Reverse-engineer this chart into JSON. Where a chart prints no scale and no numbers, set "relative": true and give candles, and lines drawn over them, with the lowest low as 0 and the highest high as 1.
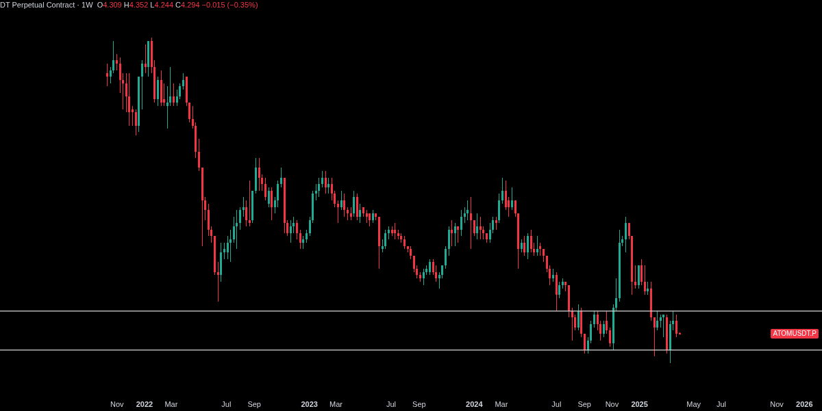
{
  "chart_data": {
    "type": "candlestick",
    "title": "DT Perpetual Contract · 1W",
    "subtitle": "O4.309 H4.352 L4.244 C4.294 −0.015 (−0.35%)",
    "relative": true,
    "annotations": [
      "ATOMUSDT.P"
    ],
    "x": [
      "2021-10-11",
      "2021-10-18",
      "2021-10-25",
      "2021-11-01",
      "2021-11-08",
      "2021-11-15",
      "2021-11-22",
      "2021-11-29",
      "2021-12-06",
      "2021-12-13",
      "2021-12-20",
      "2021-12-27",
      "2022-01-03",
      "2022-01-10",
      "2022-01-17",
      "2022-01-24",
      "2022-01-31",
      "2022-02-07",
      "2022-02-14",
      "2022-02-21",
      "2022-02-28",
      "2022-03-07",
      "2022-03-14",
      "2022-03-21",
      "2022-03-28",
      "2022-04-04",
      "2022-04-11",
      "2022-04-18",
      "2022-04-25",
      "2022-05-02",
      "2022-05-09",
      "2022-05-16",
      "2022-05-23",
      "2022-05-30",
      "2022-06-06",
      "2022-06-13",
      "2022-06-20",
      "2022-06-27",
      "2022-07-04",
      "2022-07-11",
      "2022-07-18",
      "2022-07-25",
      "2022-08-01",
      "2022-08-08",
      "2022-08-15",
      "2022-08-22",
      "2022-08-29",
      "2022-09-05",
      "2022-09-12",
      "2022-09-19",
      "2022-09-26",
      "2022-10-03",
      "2022-10-10",
      "2022-10-17",
      "2022-10-24",
      "2022-10-31",
      "2022-11-07",
      "2022-11-14",
      "2022-11-21",
      "2022-11-28",
      "2022-12-05",
      "2022-12-12",
      "2022-12-19",
      "2022-12-26",
      "2023-01-02",
      "2023-01-09",
      "2023-01-16",
      "2023-01-23",
      "2023-01-30",
      "2023-02-06",
      "2023-02-13",
      "2023-02-20",
      "2023-02-27",
      "2023-03-06",
      "2023-03-13",
      "2023-03-20",
      "2023-03-27",
      "2023-04-03",
      "2023-04-10",
      "2023-04-17",
      "2023-04-24",
      "2023-05-01",
      "2023-05-08",
      "2023-05-15",
      "2023-05-22",
      "2023-05-29",
      "2023-06-05",
      "2023-06-12",
      "2023-06-19",
      "2023-06-26",
      "2023-07-03",
      "2023-07-10",
      "2023-07-17",
      "2023-07-24",
      "2023-07-31",
      "2023-08-07",
      "2023-08-14",
      "2023-08-21",
      "2023-08-28",
      "2023-09-04",
      "2023-09-11",
      "2023-09-18",
      "2023-09-25",
      "2023-10-02",
      "2023-10-09",
      "2023-10-16",
      "2023-10-23",
      "2023-10-30",
      "2023-11-06",
      "2023-11-13",
      "2023-11-20",
      "2023-11-27",
      "2023-12-04",
      "2023-12-11",
      "2023-12-18",
      "2023-12-25",
      "2024-01-01",
      "2024-01-08",
      "2024-01-15",
      "2024-01-22",
      "2024-01-29",
      "2024-02-05",
      "2024-02-12",
      "2024-02-19",
      "2024-02-26",
      "2024-03-04",
      "2024-03-11",
      "2024-03-18",
      "2024-03-25",
      "2024-04-01",
      "2024-04-08",
      "2024-04-15",
      "2024-04-22",
      "2024-04-29",
      "2024-05-06",
      "2024-05-13",
      "2024-05-20",
      "2024-05-27",
      "2024-06-03",
      "2024-06-10",
      "2024-06-17",
      "2024-06-24",
      "2024-07-01",
      "2024-07-08",
      "2024-07-15",
      "2024-07-22",
      "2024-07-29",
      "2024-08-05",
      "2024-08-12",
      "2024-08-19",
      "2024-08-26",
      "2024-09-02",
      "2024-09-09",
      "2024-09-16",
      "2024-09-23",
      "2024-09-30",
      "2024-10-07",
      "2024-10-14",
      "2024-10-21",
      "2024-10-28",
      "2024-11-04",
      "2024-11-11",
      "2024-11-18",
      "2024-11-25",
      "2024-12-02",
      "2024-12-09",
      "2024-12-16",
      "2024-12-23",
      "2024-12-30",
      "2025-01-06",
      "2025-01-13",
      "2025-01-20",
      "2025-01-27",
      "2025-02-03",
      "2025-02-10",
      "2025-02-17",
      "2025-02-24",
      "2025-03-03",
      "2025-03-10",
      "2025-03-17",
      "2025-03-24",
      "2025-03-31"
    ],
    "ohlc": [
      [
        0.89,
        0.92,
        0.85,
        0.88
      ],
      [
        0.88,
        0.91,
        0.86,
        0.9
      ],
      [
        0.9,
        0.99,
        0.89,
        0.93
      ],
      [
        0.93,
        0.95,
        0.9,
        0.92
      ],
      [
        0.92,
        0.94,
        0.83,
        0.87
      ],
      [
        0.87,
        0.89,
        0.78,
        0.86
      ],
      [
        0.86,
        0.89,
        0.77,
        0.82
      ],
      [
        0.82,
        0.89,
        0.73,
        0.77
      ],
      [
        0.78,
        0.79,
        0.73,
        0.77
      ],
      [
        0.77,
        0.78,
        0.7,
        0.73
      ],
      [
        0.73,
        0.88,
        0.71,
        0.88
      ],
      [
        0.88,
        0.93,
        0.78,
        0.92
      ],
      [
        0.92,
        0.98,
        0.89,
        0.91
      ],
      [
        0.91,
        0.99,
        0.88,
        0.99
      ],
      [
        0.99,
        1.0,
        0.89,
        0.91
      ],
      [
        0.91,
        0.93,
        0.8,
        0.81
      ],
      [
        0.81,
        0.88,
        0.79,
        0.87
      ],
      [
        0.87,
        0.9,
        0.79,
        0.8
      ],
      [
        0.81,
        0.86,
        0.79,
        0.8
      ],
      [
        0.79,
        0.85,
        0.72,
        0.8
      ],
      [
        0.8,
        0.91,
        0.79,
        0.82
      ],
      [
        0.82,
        0.86,
        0.79,
        0.8
      ],
      [
        0.8,
        0.84,
        0.79,
        0.82
      ],
      [
        0.82,
        0.86,
        0.81,
        0.85
      ],
      [
        0.85,
        0.89,
        0.84,
        0.87
      ],
      [
        0.88,
        0.88,
        0.79,
        0.8
      ],
      [
        0.8,
        0.8,
        0.74,
        0.75
      ],
      [
        0.75,
        0.79,
        0.72,
        0.73
      ],
      [
        0.73,
        0.74,
        0.63,
        0.65
      ],
      [
        0.65,
        0.69,
        0.59,
        0.6
      ],
      [
        0.6,
        0.6,
        0.36,
        0.5
      ],
      [
        0.5,
        0.51,
        0.44,
        0.47
      ],
      [
        0.47,
        0.49,
        0.39,
        0.41
      ],
      [
        0.41,
        0.42,
        0.37,
        0.39
      ],
      [
        0.39,
        0.39,
        0.27,
        0.28
      ],
      [
        0.28,
        0.31,
        0.19,
        0.27
      ],
      [
        0.27,
        0.37,
        0.25,
        0.34
      ],
      [
        0.34,
        0.37,
        0.32,
        0.35
      ],
      [
        0.34,
        0.39,
        0.32,
        0.37
      ],
      [
        0.37,
        0.41,
        0.31,
        0.38
      ],
      [
        0.38,
        0.45,
        0.37,
        0.42
      ],
      [
        0.42,
        0.47,
        0.35,
        0.43
      ],
      [
        0.43,
        0.48,
        0.41,
        0.47
      ],
      [
        0.47,
        0.51,
        0.45,
        0.48
      ],
      [
        0.48,
        0.5,
        0.42,
        0.44
      ],
      [
        0.44,
        0.56,
        0.42,
        0.43
      ],
      [
        0.44,
        0.53,
        0.43,
        0.53
      ],
      [
        0.53,
        0.63,
        0.52,
        0.6
      ],
      [
        0.6,
        0.63,
        0.53,
        0.57
      ],
      [
        0.57,
        0.58,
        0.53,
        0.55
      ],
      [
        0.55,
        0.57,
        0.5,
        0.51
      ],
      [
        0.49,
        0.54,
        0.48,
        0.53
      ],
      [
        0.53,
        0.54,
        0.44,
        0.48
      ],
      [
        0.48,
        0.51,
        0.46,
        0.5
      ],
      [
        0.5,
        0.56,
        0.48,
        0.55
      ],
      [
        0.55,
        0.6,
        0.54,
        0.57
      ],
      [
        0.57,
        0.57,
        0.4,
        0.43
      ],
      [
        0.43,
        0.44,
        0.39,
        0.4
      ],
      [
        0.4,
        0.44,
        0.37,
        0.42
      ],
      [
        0.42,
        0.45,
        0.4,
        0.43
      ],
      [
        0.43,
        0.44,
        0.38,
        0.4
      ],
      [
        0.4,
        0.41,
        0.35,
        0.37
      ],
      [
        0.37,
        0.39,
        0.35,
        0.38
      ],
      [
        0.38,
        0.41,
        0.37,
        0.4
      ],
      [
        0.4,
        0.45,
        0.39,
        0.44
      ],
      [
        0.44,
        0.53,
        0.43,
        0.52
      ],
      [
        0.52,
        0.55,
        0.5,
        0.53
      ],
      [
        0.53,
        0.57,
        0.51,
        0.55
      ],
      [
        0.55,
        0.59,
        0.54,
        0.57
      ],
      [
        0.57,
        0.59,
        0.52,
        0.54
      ],
      [
        0.54,
        0.57,
        0.52,
        0.55
      ],
      [
        0.55,
        0.57,
        0.5,
        0.52
      ],
      [
        0.52,
        0.53,
        0.48,
        0.49
      ],
      [
        0.49,
        0.5,
        0.43,
        0.48
      ],
      [
        0.48,
        0.53,
        0.47,
        0.5
      ],
      [
        0.5,
        0.52,
        0.45,
        0.47
      ],
      [
        0.47,
        0.48,
        0.44,
        0.46
      ],
      [
        0.46,
        0.48,
        0.44,
        0.45
      ],
      [
        0.46,
        0.53,
        0.45,
        0.51
      ],
      [
        0.51,
        0.52,
        0.44,
        0.45
      ],
      [
        0.45,
        0.49,
        0.43,
        0.47
      ],
      [
        0.48,
        0.48,
        0.45,
        0.46
      ],
      [
        0.46,
        0.47,
        0.43,
        0.45
      ],
      [
        0.46,
        0.46,
        0.42,
        0.44
      ],
      [
        0.44,
        0.47,
        0.43,
        0.46
      ],
      [
        0.46,
        0.46,
        0.44,
        0.45
      ],
      [
        0.45,
        0.45,
        0.29,
        0.36
      ],
      [
        0.35,
        0.38,
        0.34,
        0.36
      ],
      [
        0.36,
        0.41,
        0.35,
        0.4
      ],
      [
        0.4,
        0.42,
        0.38,
        0.41
      ],
      [
        0.41,
        0.42,
        0.39,
        0.4
      ],
      [
        0.41,
        0.43,
        0.38,
        0.4
      ],
      [
        0.4,
        0.41,
        0.38,
        0.39
      ],
      [
        0.39,
        0.4,
        0.37,
        0.38
      ],
      [
        0.38,
        0.39,
        0.35,
        0.36
      ],
      [
        0.36,
        0.36,
        0.34,
        0.35
      ],
      [
        0.35,
        0.36,
        0.32,
        0.33
      ],
      [
        0.33,
        0.33,
        0.28,
        0.29
      ],
      [
        0.29,
        0.3,
        0.26,
        0.27
      ],
      [
        0.27,
        0.28,
        0.25,
        0.26
      ],
      [
        0.26,
        0.29,
        0.24,
        0.28
      ],
      [
        0.28,
        0.3,
        0.27,
        0.29
      ],
      [
        0.28,
        0.32,
        0.27,
        0.31
      ],
      [
        0.31,
        0.32,
        0.27,
        0.28
      ],
      [
        0.28,
        0.3,
        0.25,
        0.26
      ],
      [
        0.26,
        0.28,
        0.23,
        0.27
      ],
      [
        0.27,
        0.3,
        0.26,
        0.3
      ],
      [
        0.3,
        0.36,
        0.29,
        0.35
      ],
      [
        0.35,
        0.42,
        0.33,
        0.41
      ],
      [
        0.41,
        0.44,
        0.36,
        0.4
      ],
      [
        0.4,
        0.43,
        0.36,
        0.42
      ],
      [
        0.42,
        0.42,
        0.37,
        0.41
      ],
      [
        0.41,
        0.47,
        0.39,
        0.45
      ],
      [
        0.45,
        0.48,
        0.43,
        0.46
      ],
      [
        0.46,
        0.5,
        0.44,
        0.47
      ],
      [
        0.46,
        0.51,
        0.35,
        0.44
      ],
      [
        0.44,
        0.44,
        0.39,
        0.4
      ],
      [
        0.4,
        0.46,
        0.38,
        0.42
      ],
      [
        0.42,
        0.45,
        0.38,
        0.41
      ],
      [
        0.41,
        0.42,
        0.38,
        0.4
      ],
      [
        0.4,
        0.4,
        0.37,
        0.38
      ],
      [
        0.38,
        0.43,
        0.37,
        0.41
      ],
      [
        0.41,
        0.45,
        0.4,
        0.44
      ],
      [
        0.44,
        0.45,
        0.41,
        0.43
      ],
      [
        0.44,
        0.52,
        0.43,
        0.5
      ],
      [
        0.5,
        0.57,
        0.49,
        0.53
      ],
      [
        0.53,
        0.56,
        0.47,
        0.48
      ],
      [
        0.5,
        0.51,
        0.45,
        0.48
      ],
      [
        0.48,
        0.54,
        0.47,
        0.5
      ],
      [
        0.5,
        0.5,
        0.45,
        0.46
      ],
      [
        0.46,
        0.46,
        0.29,
        0.35
      ],
      [
        0.35,
        0.38,
        0.34,
        0.37
      ],
      [
        0.37,
        0.39,
        0.33,
        0.34
      ],
      [
        0.34,
        0.4,
        0.32,
        0.39
      ],
      [
        0.39,
        0.41,
        0.34,
        0.35
      ],
      [
        0.35,
        0.37,
        0.33,
        0.34
      ],
      [
        0.34,
        0.39,
        0.33,
        0.35
      ],
      [
        0.36,
        0.37,
        0.33,
        0.35
      ],
      [
        0.35,
        0.35,
        0.31,
        0.33
      ],
      [
        0.33,
        0.33,
        0.28,
        0.29
      ],
      [
        0.29,
        0.3,
        0.24,
        0.26
      ],
      [
        0.26,
        0.29,
        0.25,
        0.27
      ],
      [
        0.27,
        0.28,
        0.16,
        0.21
      ],
      [
        0.21,
        0.25,
        0.2,
        0.24
      ],
      [
        0.24,
        0.26,
        0.23,
        0.25
      ],
      [
        0.25,
        0.25,
        0.22,
        0.24
      ],
      [
        0.24,
        0.24,
        0.14,
        0.16
      ],
      [
        0.16,
        0.17,
        0.07,
        0.14
      ],
      [
        0.14,
        0.15,
        0.1,
        0.11
      ],
      [
        0.11,
        0.18,
        0.1,
        0.16
      ],
      [
        0.16,
        0.17,
        0.08,
        0.09
      ],
      [
        0.09,
        0.09,
        0.03,
        0.04
      ],
      [
        0.04,
        0.08,
        0.03,
        0.07
      ],
      [
        0.07,
        0.13,
        0.06,
        0.12
      ],
      [
        0.12,
        0.16,
        0.11,
        0.15
      ],
      [
        0.15,
        0.16,
        0.1,
        0.12
      ],
      [
        0.12,
        0.13,
        0.07,
        0.09
      ],
      [
        0.09,
        0.13,
        0.08,
        0.12
      ],
      [
        0.13,
        0.16,
        0.09,
        0.1
      ],
      [
        0.1,
        0.11,
        0.05,
        0.06
      ],
      [
        0.06,
        0.18,
        0.04,
        0.17
      ],
      [
        0.17,
        0.26,
        0.16,
        0.2
      ],
      [
        0.2,
        0.41,
        0.19,
        0.37
      ],
      [
        0.37,
        0.39,
        0.36,
        0.38
      ],
      [
        0.38,
        0.45,
        0.34,
        0.43
      ],
      [
        0.43,
        0.43,
        0.38,
        0.39
      ],
      [
        0.39,
        0.39,
        0.21,
        0.25
      ],
      [
        0.25,
        0.3,
        0.23,
        0.24
      ],
      [
        0.24,
        0.3,
        0.23,
        0.3
      ],
      [
        0.3,
        0.32,
        0.24,
        0.25
      ],
      [
        0.25,
        0.3,
        0.21,
        0.22
      ],
      [
        0.22,
        0.25,
        0.21,
        0.23
      ],
      [
        0.23,
        0.25,
        0.13,
        0.14
      ],
      [
        0.14,
        0.14,
        0.02,
        0.11
      ],
      [
        0.11,
        0.16,
        0.1,
        0.13
      ],
      [
        0.13,
        0.15,
        0.11,
        0.14
      ],
      [
        0.14,
        0.15,
        0.08,
        0.15
      ],
      [
        0.14,
        0.15,
        0.03,
        0.04
      ],
      [
        0.04,
        0.13,
        0,
        0.12
      ],
      [
        0.12,
        0.16,
        0.1,
        0.13
      ],
      [
        0.13,
        0.15,
        0.08,
        0.09
      ],
      [
        0.092,
        0.095,
        0.088,
        0.09
      ]
    ],
    "colors": [
      "#f23645",
      "#22ab94",
      "#22ab94",
      "#f23645",
      "#f23645",
      "#f23645",
      "#f23645",
      "#f23645",
      "#f23645",
      "#f23645",
      "#22ab94",
      "#22ab94",
      "#f23645",
      "#22ab94",
      "#f23645",
      "#f23645",
      "#22ab94",
      "#f23645",
      "#f23645",
      "#22ab94",
      "#22ab94",
      "#f23645",
      "#22ab94",
      "#22ab94",
      "#22ab94",
      "#f23645",
      "#f23645",
      "#f23645",
      "#f23645",
      "#f23645",
      "#f23645",
      "#f23645",
      "#f23645",
      "#f23645",
      "#f23645",
      "#f23645",
      "#22ab94",
      "#22ab94",
      "#22ab94",
      "#22ab94",
      "#22ab94",
      "#22ab94",
      "#22ab94",
      "#22ab94",
      "#f23645",
      "#f23645",
      "#22ab94",
      "#22ab94",
      "#f23645",
      "#f23645",
      "#f23645",
      "#22ab94",
      "#f23645",
      "#22ab94",
      "#22ab94",
      "#22ab94",
      "#f23645",
      "#f23645",
      "#22ab94",
      "#22ab94",
      "#f23645",
      "#f23645",
      "#22ab94",
      "#22ab94",
      "#22ab94",
      "#22ab94",
      "#22ab94",
      "#22ab94",
      "#22ab94",
      "#f23645",
      "#22ab94",
      "#f23645",
      "#f23645",
      "#f23645",
      "#22ab94",
      "#f23645",
      "#f23645",
      "#f23645",
      "#22ab94",
      "#f23645",
      "#22ab94",
      "#f23645",
      "#f23645",
      "#f23645",
      "#22ab94",
      "#f23645",
      "#f23645",
      "#22ab94",
      "#22ab94",
      "#22ab94",
      "#f23645",
      "#f23645",
      "#f23645",
      "#f23645",
      "#f23645",
      "#f23645",
      "#f23645",
      "#f23645",
      "#f23645",
      "#f23645",
      "#22ab94",
      "#22ab94",
      "#22ab94",
      "#f23645",
      "#f23645",
      "#22ab94",
      "#22ab94",
      "#22ab94",
      "#22ab94",
      "#f23645",
      "#22ab94",
      "#f23645",
      "#22ab94",
      "#22ab94",
      "#22ab94",
      "#f23645",
      "#f23645",
      "#22ab94",
      "#f23645",
      "#f23645",
      "#f23645",
      "#22ab94",
      "#22ab94",
      "#f23645",
      "#22ab94",
      "#22ab94",
      "#f23645",
      "#f23645",
      "#22ab94",
      "#f23645",
      "#f23645",
      "#22ab94",
      "#f23645",
      "#22ab94",
      "#f23645",
      "#f23645",
      "#22ab94",
      "#f23645",
      "#f23645",
      "#f23645",
      "#f23645",
      "#22ab94",
      "#f23645",
      "#22ab94",
      "#22ab94",
      "#f23645",
      "#f23645",
      "#f23645",
      "#f23645",
      "#22ab94",
      "#f23645",
      "#f23645",
      "#22ab94",
      "#22ab94",
      "#22ab94",
      "#f23645",
      "#f23645",
      "#22ab94",
      "#f23645",
      "#f23645",
      "#22ab94",
      "#22ab94",
      "#22ab94",
      "#22ab94",
      "#22ab94",
      "#f23645",
      "#f23645",
      "#f23645",
      "#22ab94",
      "#f23645",
      "#f23645",
      "#22ab94",
      "#f23645",
      "#f23645",
      "#22ab94",
      "#22ab94",
      "#22ab94",
      "#f23645",
      "#22ab94",
      "#22ab94",
      "#f23645",
      "#f23645"
    ],
    "ref_lines": [
      {
        "axis": "y",
        "value": 0.16,
        "color": "#d9d9d9"
      },
      {
        "axis": "y",
        "value": 0.04,
        "color": "#d9d9d9"
      }
    ],
    "xlim": [
      "2021-02-15",
      "2026-02-09"
    ],
    "xticks": [
      {
        "value": "2021-11-01",
        "label": "Nov"
      },
      {
        "value": "2022-01-01",
        "label": "2022"
      },
      {
        "value": "2022-03-01",
        "label": "Mar"
      },
      {
        "value": "2022-07-01",
        "label": "Jul"
      },
      {
        "value": "2022-09-01",
        "label": "Sep"
      },
      {
        "value": "2023-01-01",
        "label": "2023"
      },
      {
        "value": "2023-03-01",
        "label": "Mar"
      },
      {
        "value": "2023-07-01",
        "label": "Jul"
      },
      {
        "value": "2023-09-01",
        "label": "Sep"
      },
      {
        "value": "2024-01-01",
        "label": "2024"
      },
      {
        "value": "2024-03-01",
        "label": "Mar"
      },
      {
        "value": "2024-07-01",
        "label": "Jul"
      },
      {
        "value": "2024-09-01",
        "label": "Sep"
      },
      {
        "value": "2024-11-01",
        "label": "Nov"
      },
      {
        "value": "2025-01-01",
        "label": "2025"
      },
      {
        "value": "2025-05-01",
        "label": "May"
      },
      {
        "value": "2025-07-01",
        "label": "Jul"
      },
      {
        "value": "2025-11-01",
        "label": "Nov"
      },
      {
        "value": "2026-01-01",
        "label": "2026"
      }
    ]
  }
}
